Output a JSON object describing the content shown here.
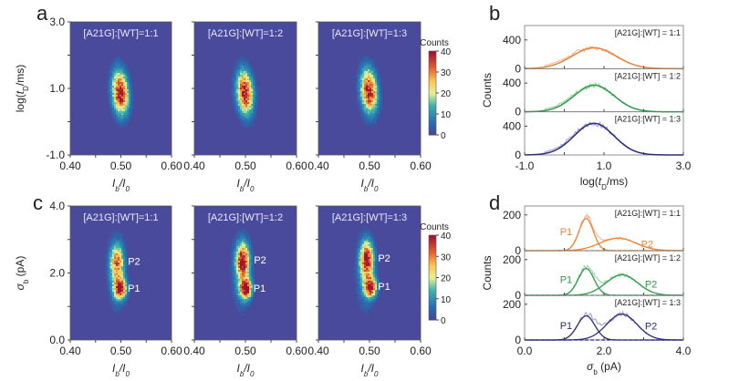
{
  "panel_labels": {
    "a": "a",
    "b": "b",
    "c": "c",
    "d": "d"
  },
  "colors": {
    "heatmap_bg": "#4a4a9c",
    "ratio_1_1": "#e8843a",
    "ratio_1_2": "#2e9a48",
    "ratio_1_3": "#2c2c7a",
    "ratio_1_1_raw": "#f2b48c",
    "ratio_1_2_raw": "#8ed098",
    "ratio_1_3_raw": "#9c9cd8"
  },
  "chart_data": [
    {
      "id": "a",
      "type": "heatmap",
      "subplots": [
        {
          "title": "[A21G]:[WT]=1:1",
          "peak": {
            "x": 0.497,
            "y": 0.9
          }
        },
        {
          "title": "[A21G]:[WT]=1:2",
          "peak": {
            "x": 0.497,
            "y": 0.9
          }
        },
        {
          "title": "[A21G]:[WT]=1:3",
          "peak": {
            "x": 0.497,
            "y": 0.95
          }
        }
      ],
      "xlabel": "I_b/I_0",
      "ylabel": "log(t_D/ms)",
      "xlim": [
        0.4,
        0.6
      ],
      "ylim": [
        -1.0,
        3.0
      ],
      "xticks": [
        "0.40",
        "0.50",
        "0.60"
      ],
      "yticks": [
        "3.0",
        "1.0",
        "-1.0"
      ],
      "colorbar": {
        "label": "Counts",
        "ticks": [
          "40",
          "30",
          "20",
          "10",
          "0"
        ],
        "range": [
          0,
          40
        ]
      }
    },
    {
      "id": "b",
      "type": "line",
      "xlabel": "log(t_D/ms)",
      "ylabel": "Counts",
      "xlim": [
        -1.0,
        3.0
      ],
      "xticks": [
        "-1.0",
        "1.0",
        "3.0"
      ],
      "yticks": [
        "400",
        "0"
      ],
      "ylim": [
        0,
        600
      ],
      "series": [
        {
          "name": "[A21G]:[WT] = 1:1",
          "fit_center": 0.75,
          "fit_sigma": 0.55,
          "fit_amplitude": 290
        },
        {
          "name": "[A21G]:[WT] = 1:2",
          "fit_center": 0.75,
          "fit_sigma": 0.5,
          "fit_amplitude": 370
        },
        {
          "name": "[A21G]:[WT] = 1:3",
          "fit_center": 0.75,
          "fit_sigma": 0.5,
          "fit_amplitude": 440
        }
      ]
    },
    {
      "id": "c",
      "type": "heatmap",
      "subplots": [
        {
          "title": "[A21G]:[WT]=1:1",
          "p1": {
            "x": 0.497,
            "y": 1.55
          },
          "p2": {
            "x": 0.49,
            "y": 2.35
          }
        },
        {
          "title": "[A21G]:[WT]=1:2",
          "p1": {
            "x": 0.499,
            "y": 1.55
          },
          "p2": {
            "x": 0.493,
            "y": 2.4
          }
        },
        {
          "title": "[A21G]:[WT]=1:3",
          "p1": {
            "x": 0.5,
            "y": 1.6
          },
          "p2": {
            "x": 0.493,
            "y": 2.45
          }
        }
      ],
      "peak_labels": [
        "P1",
        "P2"
      ],
      "xlabel": "I_b/I_0",
      "ylabel": "σ_b (pA)",
      "xlim": [
        0.4,
        0.6
      ],
      "ylim": [
        0.0,
        4.0
      ],
      "xticks": [
        "0.40",
        "0.50",
        "0.60"
      ],
      "yticks": [
        "4.0",
        "2.0",
        "0.0"
      ],
      "colorbar": {
        "label": "Counts",
        "ticks": [
          "40",
          "30",
          "20",
          "10",
          "0"
        ],
        "range": [
          0,
          40
        ]
      }
    },
    {
      "id": "d",
      "type": "line",
      "xlabel": "σ_b (pA)",
      "ylabel": "Counts",
      "xlim": [
        0.0,
        4.0
      ],
      "xticks": [
        "0.0",
        "2.0",
        "4.0"
      ],
      "yticks": [
        "200",
        "0"
      ],
      "ylim": [
        0,
        250
      ],
      "series": [
        {
          "name": "[A21G]:[WT] = 1:1",
          "p1": {
            "center": 1.55,
            "sigma": 0.18,
            "amplitude": 180
          },
          "p2": {
            "center": 2.35,
            "sigma": 0.45,
            "amplitude": 70
          }
        },
        {
          "name": "[A21G]:[WT] = 1:2",
          "p1": {
            "center": 1.55,
            "sigma": 0.2,
            "amplitude": 150
          },
          "p2": {
            "center": 2.45,
            "sigma": 0.4,
            "amplitude": 115
          }
        },
        {
          "name": "[A21G]:[WT] = 1:3",
          "p1": {
            "center": 1.55,
            "sigma": 0.22,
            "amplitude": 135
          },
          "p2": {
            "center": 2.45,
            "sigma": 0.38,
            "amplitude": 145
          }
        }
      ],
      "peak_labels": [
        "P1",
        "P2"
      ]
    }
  ]
}
